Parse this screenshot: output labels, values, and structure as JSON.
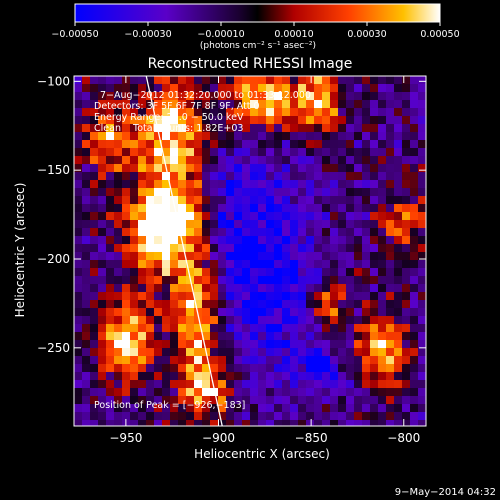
{
  "chart_data": {
    "type": "heatmap",
    "title": "Reconstructed RHESSI Image",
    "xlabel": "Heliocentric X (arcsec)",
    "ylabel": "Heliocentric Y (arcsec)",
    "xlim": [
      -978,
      -788
    ],
    "ylim": [
      -294,
      -97
    ],
    "x_ticks": [
      -950,
      -900,
      -850,
      -800
    ],
    "y_ticks": [
      -100,
      -150,
      -200,
      -250
    ],
    "x_tick_labels": [
      "−950",
      "−900",
      "−850",
      "−800"
    ],
    "y_tick_labels": [
      "−100",
      "−150",
      "−200",
      "−250"
    ],
    "colorbar": {
      "range": [
        -0.0005,
        0.0005
      ],
      "ticks": [
        -0.0005,
        -0.0003,
        -0.0001,
        0.0001,
        0.0003,
        0.0005
      ],
      "tick_labels": [
        "−0.00050",
        "−0.00030",
        "−0.00010",
        "0.00010",
        "0.00030",
        "0.00050"
      ],
      "unit_label": "(photons cm⁻² s⁻¹ asec⁻²)"
    },
    "annotations": [
      "7−Aug−2012 01:32:20.000 to 01:33:12.000",
      "Detectors: 3F 5F 6F 7F 8F 9F, Att 0",
      "Energy Range: 25.0 − 50.0 keV",
      "Clean    Total counts: 1.82E+03"
    ],
    "peak_label": "Position of Peak = [−926,−183]",
    "peak": [
      -926,
      -183
    ],
    "limb_line": [
      [
        -939,
        -97
      ],
      [
        -898,
        -294
      ]
    ],
    "bright_sources": [
      {
        "x": -930,
        "y": -180,
        "sx": 14,
        "sy": 22,
        "amp": 1.0
      },
      {
        "x": -925,
        "y": -125,
        "sx": 12,
        "sy": 18,
        "amp": 0.7
      },
      {
        "x": -950,
        "y": -245,
        "sx": 10,
        "sy": 16,
        "amp": 0.75
      },
      {
        "x": -912,
        "y": -240,
        "sx": 8,
        "sy": 28,
        "amp": 0.7
      },
      {
        "x": -960,
        "y": -130,
        "sx": 10,
        "sy": 14,
        "amp": 0.55
      },
      {
        "x": -875,
        "y": -110,
        "sx": 14,
        "sy": 12,
        "amp": 0.75
      },
      {
        "x": -845,
        "y": -110,
        "sx": 8,
        "sy": 14,
        "amp": 0.6
      },
      {
        "x": -840,
        "y": -225,
        "sx": 6,
        "sy": 12,
        "amp": 0.55
      },
      {
        "x": -812,
        "y": -250,
        "sx": 9,
        "sy": 14,
        "amp": 0.7
      },
      {
        "x": -800,
        "y": -180,
        "sx": 8,
        "sy": 12,
        "amp": 0.5
      },
      {
        "x": -905,
        "y": -275,
        "sx": 10,
        "sy": 10,
        "amp": 0.45
      }
    ],
    "dim_sources": [
      {
        "x": -870,
        "y": -210,
        "sx": 18,
        "sy": 40,
        "amp": 0.9
      },
      {
        "x": -845,
        "y": -260,
        "sx": 8,
        "sy": 10,
        "amp": 0.8
      },
      {
        "x": -890,
        "y": -175,
        "sx": 10,
        "sy": 30,
        "amp": 0.5
      }
    ],
    "grid": false
  },
  "footer": "9−May−2014 04:32"
}
